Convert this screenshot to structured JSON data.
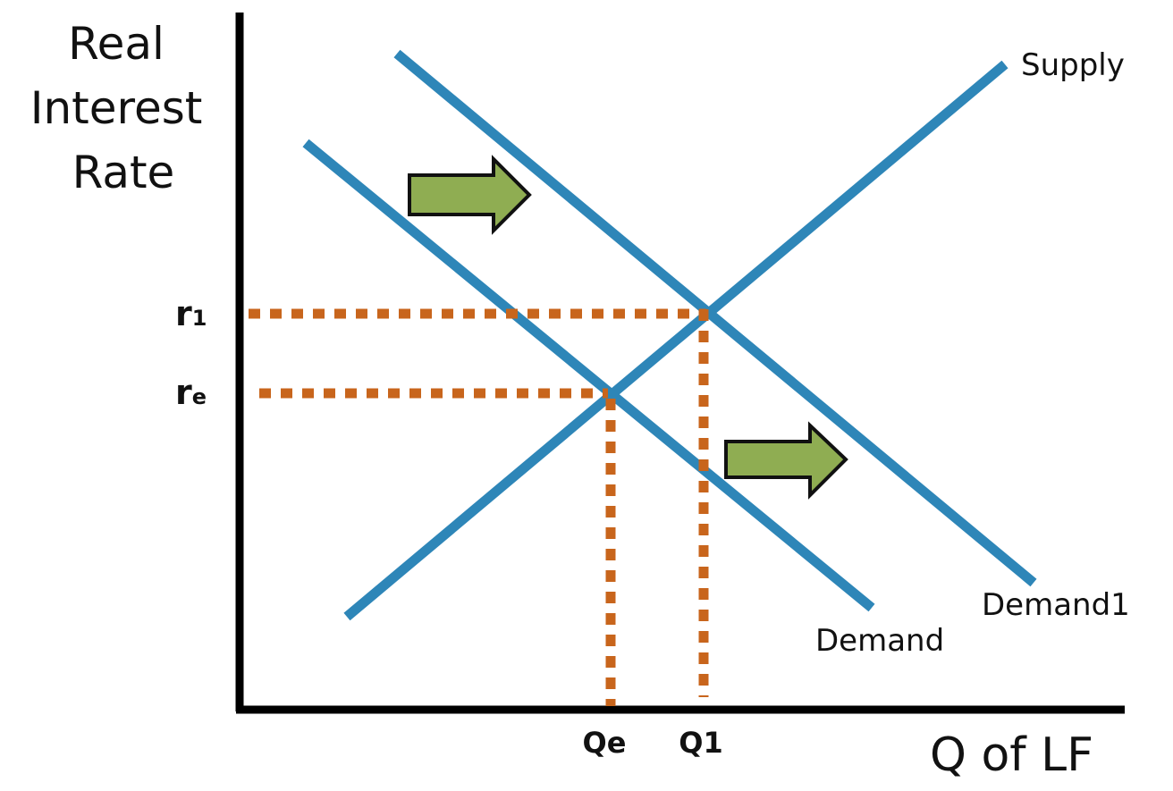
{
  "diagram": {
    "y_axis_label": [
      "Real",
      "Interest",
      "Rate"
    ],
    "x_axis_label": "Q of LF",
    "curves": {
      "supply": "Supply",
      "demand": "Demand",
      "demand1": "Demand1"
    },
    "y_ticks": {
      "r1": {
        "main": "r",
        "sub": "1"
      },
      "re": {
        "main": "r",
        "sub": "e"
      }
    },
    "x_ticks": {
      "qe": "Qe",
      "q1": "Q1"
    },
    "shift_direction": "right",
    "colors": {
      "curve": "#2e86b8",
      "guide": "#c8651c",
      "arrow_fill": "#8fad52",
      "arrow_stroke": "#111111",
      "axis": "#000000"
    }
  }
}
